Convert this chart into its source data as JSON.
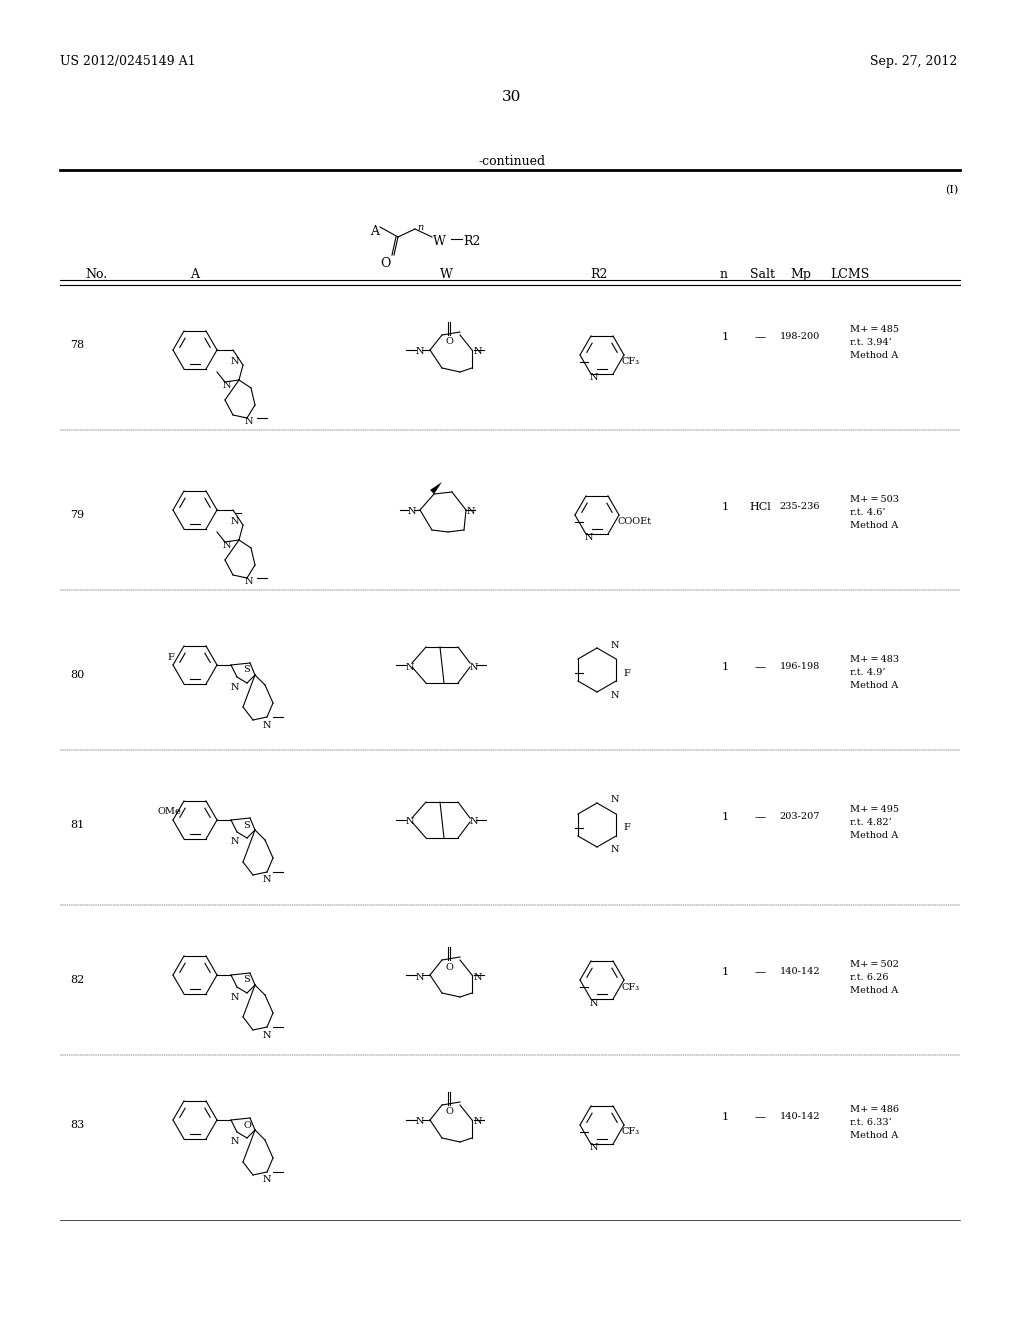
{
  "page_number": "30",
  "patent_number": "US 2012/0245149 A1",
  "patent_date": "Sep. 27, 2012",
  "continued_label": "-continued",
  "formula_label": "(I)",
  "table_headers": [
    "No.",
    "A",
    "W",
    "R2",
    "n",
    "Salt",
    "Mp",
    "LCMS"
  ],
  "rows": [
    {
      "no": "78",
      "n": "1",
      "salt": "—",
      "mp": "198-200",
      "lcms": "M+ = 485\nr.t. 3.94’\nMethod A"
    },
    {
      "no": "79",
      "n": "1",
      "salt": "HCl",
      "mp": "235-236",
      "lcms": "M+ = 503\nr.t. 4.6’\nMethod A"
    },
    {
      "no": "80",
      "n": "1",
      "salt": "—",
      "mp": "196-198",
      "lcms": "M+ = 483\nr.t. 4.9’\nMethod A"
    },
    {
      "no": "81",
      "n": "1",
      "salt": "—",
      "mp": "203-207",
      "lcms": "M+ = 495\nr.t. 4.82’\nMethod A"
    },
    {
      "no": "82",
      "n": "1",
      "salt": "—",
      "mp": "140-142",
      "lcms": "M+ = 502\nr.t. 6.26\nMethod A"
    },
    {
      "no": "83",
      "n": "1",
      "salt": "—",
      "mp": "140-142",
      "lcms": "M+ = 486\nr.t. 6.33’\nMethod A"
    }
  ],
  "bg_color": "#ffffff",
  "text_color": "#000000",
  "line_color": "#000000",
  "font_size_header": 9,
  "font_size_body": 8,
  "font_size_patent": 9,
  "font_size_page": 11
}
